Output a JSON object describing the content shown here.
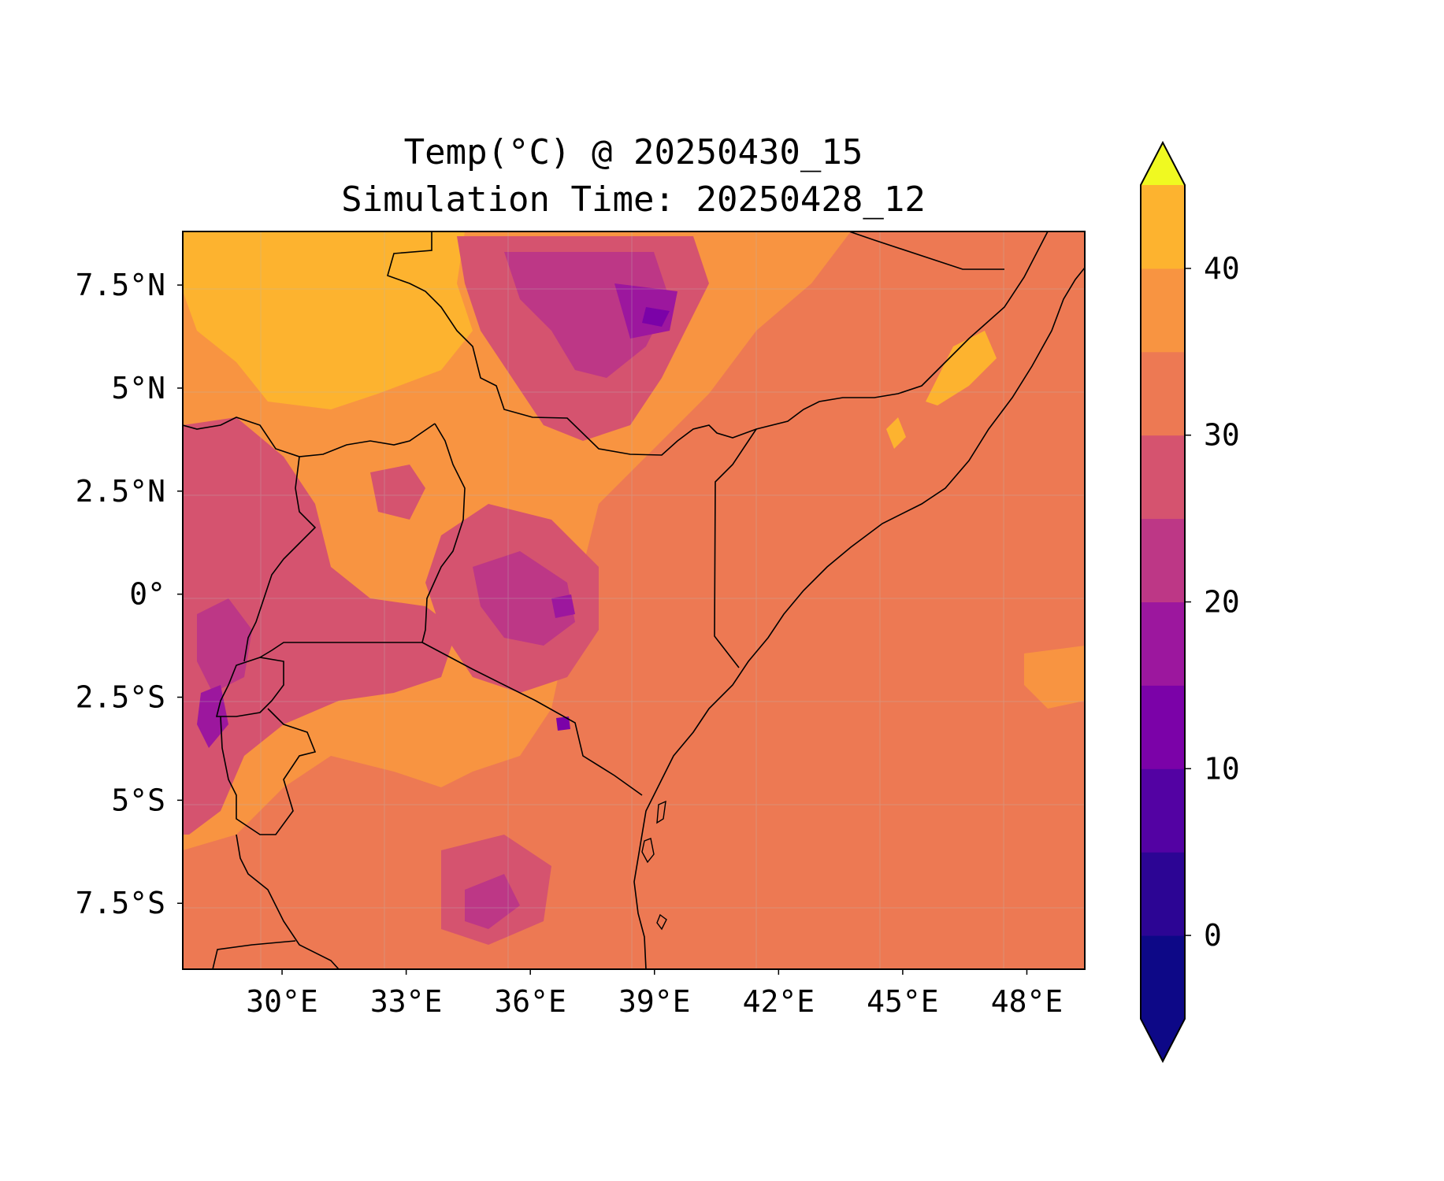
{
  "title": {
    "line1": "Temp(°C) @ 20250430_15",
    "line2": "Simulation Time: 20250428_12"
  },
  "chart_data": {
    "type": "heatmap",
    "variable": "Temp(°C)",
    "valid_time": "20250430_15",
    "simulation_time": "20250428_12",
    "grid": true,
    "map_extent": {
      "lon": [
        27.6,
        49.4
      ],
      "lat": [
        -9.1,
        8.8
      ]
    },
    "x_ticks": [
      {
        "value": 30,
        "label": "30°E"
      },
      {
        "value": 33,
        "label": "33°E"
      },
      {
        "value": 36,
        "label": "36°E"
      },
      {
        "value": 39,
        "label": "39°E"
      },
      {
        "value": 42,
        "label": "42°E"
      },
      {
        "value": 45,
        "label": "45°E"
      },
      {
        "value": 48,
        "label": "48°E"
      }
    ],
    "y_ticks": [
      {
        "value": 7.5,
        "label": "7.5°N"
      },
      {
        "value": 5,
        "label": "5°N"
      },
      {
        "value": 2.5,
        "label": "2.5°N"
      },
      {
        "value": 0,
        "label": "0°"
      },
      {
        "value": -2.5,
        "label": "2.5°S"
      },
      {
        "value": -5,
        "label": "5°S"
      },
      {
        "value": -7.5,
        "label": "7.5°S"
      }
    ],
    "colorbar": {
      "placement": "right",
      "extend": "both",
      "levels": [
        -5,
        0,
        5,
        10,
        15,
        20,
        25,
        30,
        35,
        40,
        45
      ],
      "colors": [
        "#0d0887",
        "#2c0594",
        "#5302a3",
        "#7b02a8",
        "#9c179e",
        "#bd3786",
        "#d5536f",
        "#ed7953",
        "#f89441",
        "#fdb32f",
        "#f1e51e"
      ],
      "under_color": "#0d0887",
      "over_color": "#f0f921",
      "tick_values": [
        0,
        10,
        20,
        30,
        40
      ],
      "tick_labels": [
        "0",
        "10",
        "20",
        "30",
        "40"
      ]
    },
    "regions": [
      {
        "lon": [
          27.6,
          34.5
        ],
        "lat": [
          5.2,
          8.8
        ],
        "temp": 37
      },
      {
        "lon": [
          38.5,
          45.0
        ],
        "lat": [
          -3.0,
          3.5
        ],
        "temp": 32
      },
      {
        "lon": [
          41.5,
          47.5
        ],
        "lat": [
          3.0,
          8.0
        ],
        "temp": 32
      },
      {
        "lon": [
          35.5,
          40.5
        ],
        "lat": [
          4.5,
          8.8
        ],
        "temp": 21
      },
      {
        "lon": [
          28.5,
          30.5
        ],
        "lat": [
          -4.5,
          1.0
        ],
        "temp": 20
      },
      {
        "lon": [
          43.5,
          49.4
        ],
        "lat": [
          -9.1,
          0.0
        ],
        "temp": 28
      }
    ]
  }
}
